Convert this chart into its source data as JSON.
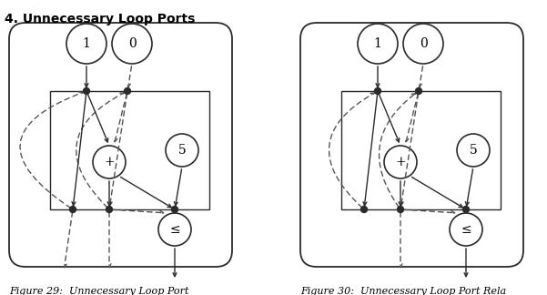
{
  "fig_width": 6.01,
  "fig_height": 3.24,
  "dpi": 100,
  "bg_color": "#ffffff",
  "title": "4. Unnecessary Loop Ports",
  "fig1_caption": "Figure 29:  Unnecessary Loop Port",
  "fig2_caption": "Figure 30:  Unnecessary Loop Port Rela",
  "caption_fontsize": 8,
  "title_fontsize": 10
}
